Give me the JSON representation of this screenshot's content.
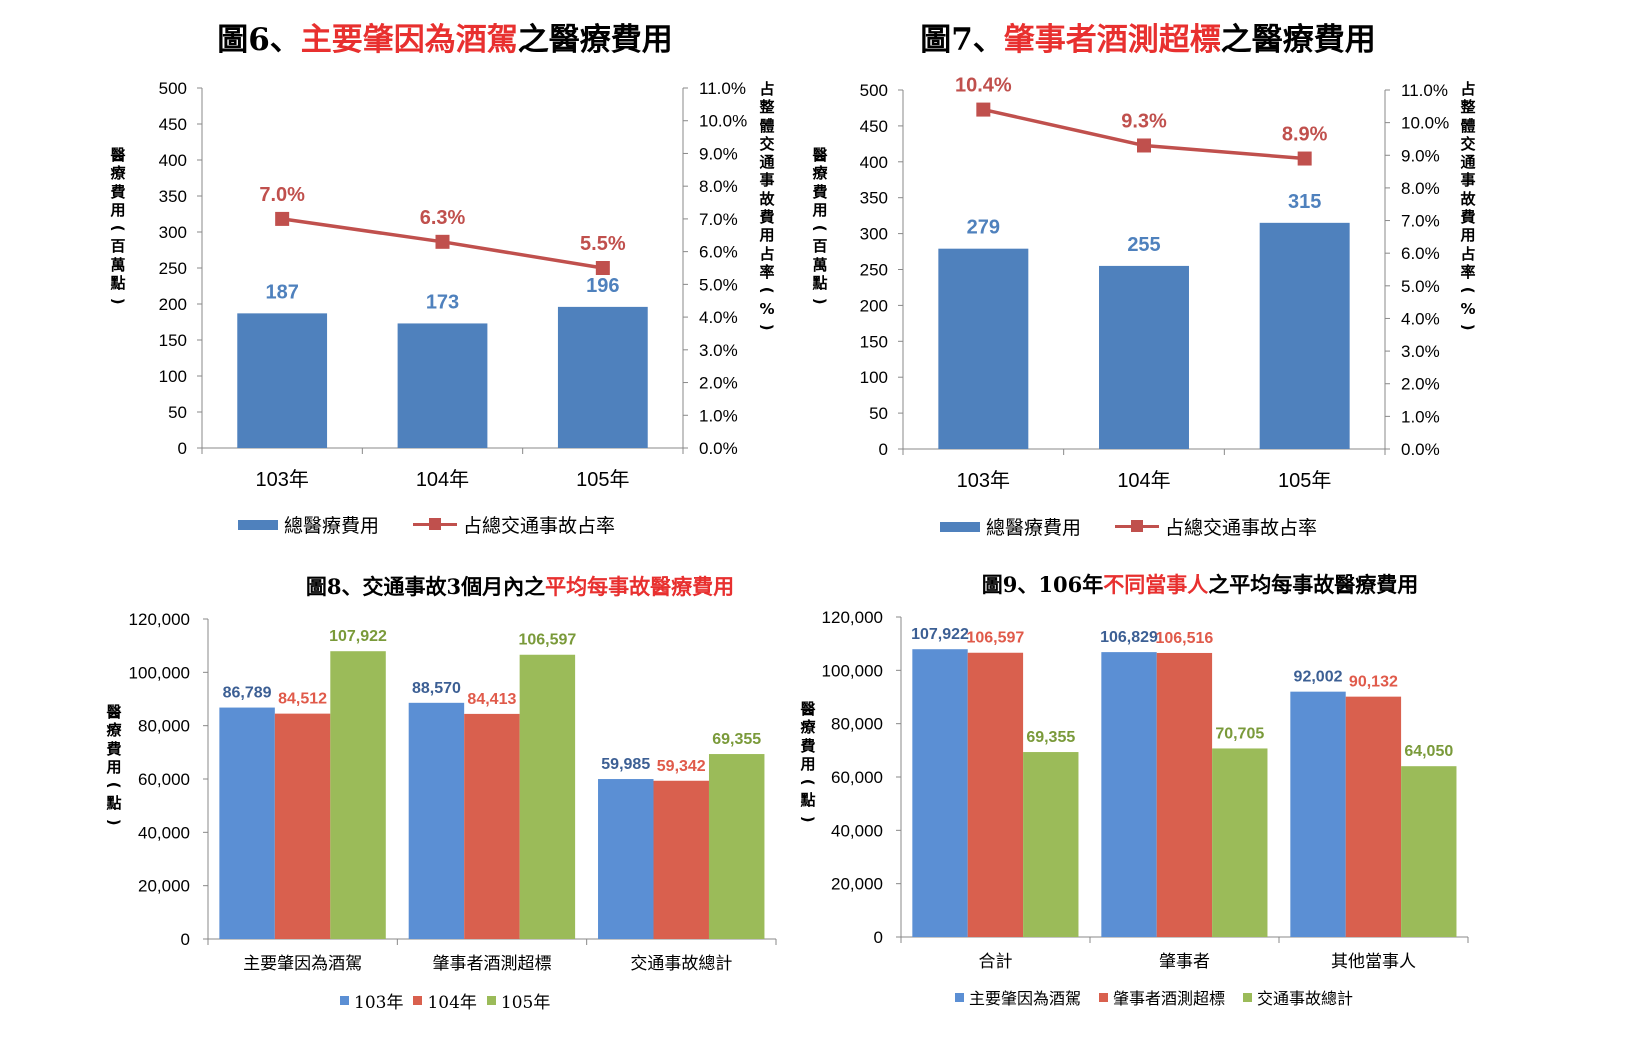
{
  "charts": [
    {
      "title_parts": [
        {
          "text": "圖6、",
          "hl": false
        },
        {
          "text": "主要肇因為酒駕",
          "hl": true
        },
        {
          "text": "之醫療費用",
          "hl": false
        }
      ],
      "y_label": "醫療費用(百萬點)",
      "y2_label": "占整體交通事故費用占率(%)",
      "legend": [
        "總醫療費用",
        "占總交通事故占率"
      ]
    },
    {
      "title_parts": [
        {
          "text": "圖7、",
          "hl": false
        },
        {
          "text": "肇事者酒測超標",
          "hl": true
        },
        {
          "text": "之醫療費用",
          "hl": false
        }
      ],
      "y_label": "醫療費用(百萬點)",
      "y2_label": "占整體交通事故費用占率(%)",
      "legend": [
        "總醫療費用",
        "占總交通事故占率"
      ]
    },
    {
      "title_parts": [
        {
          "text": "圖8、交通事故3個月內之",
          "hl": false
        },
        {
          "text": "平均每事故醫療費用",
          "hl": true
        }
      ],
      "y_label": "醫療費用(點)",
      "legend": [
        "103年",
        "104年",
        "105年"
      ]
    },
    {
      "title_parts": [
        {
          "text": "圖9、106年",
          "hl": false
        },
        {
          "text": "不同當事人",
          "hl": true
        },
        {
          "text": "之平均每事故醫療費用",
          "hl": false
        }
      ],
      "y_label": "醫療費用(點)",
      "legend": [
        "主要肇因為酒駕",
        "肇事者酒測超標",
        "交通事故總計"
      ]
    }
  ],
  "colors": {
    "blue": "#4f81bd",
    "bar_blue_light": "#5b8fd4",
    "red": "#c0504d",
    "red_bar": "#d9604e",
    "green": "#9bbb59",
    "title_red": "#e8302f"
  },
  "chart_data": [
    {
      "type": "bar+line",
      "categories": [
        "103年",
        "104年",
        "105年"
      ],
      "bars": {
        "name": "總醫療費用",
        "values": [
          187,
          173,
          196
        ]
      },
      "line": {
        "name": "占總交通事故占率",
        "values": [
          7.0,
          6.3,
          5.5
        ],
        "labels": [
          "7.0%",
          "6.3%",
          "5.5%"
        ]
      },
      "ylim": [
        0,
        500
      ],
      "yticks": [
        0,
        50,
        100,
        150,
        200,
        250,
        300,
        350,
        400,
        450,
        500
      ],
      "y2lim": [
        0,
        11
      ],
      "y2ticks": [
        "0.0%",
        "1.0%",
        "2.0%",
        "3.0%",
        "4.0%",
        "5.0%",
        "6.0%",
        "7.0%",
        "8.0%",
        "9.0%",
        "10.0%",
        "11.0%"
      ],
      "legend_position": "bottom"
    },
    {
      "type": "bar+line",
      "categories": [
        "103年",
        "104年",
        "105年"
      ],
      "bars": {
        "name": "總醫療費用",
        "values": [
          279,
          255,
          315
        ]
      },
      "line": {
        "name": "占總交通事故占率",
        "values": [
          10.4,
          9.3,
          8.9
        ],
        "labels": [
          "10.4%",
          "9.3%",
          "8.9%"
        ]
      },
      "ylim": [
        0,
        500
      ],
      "yticks": [
        0,
        50,
        100,
        150,
        200,
        250,
        300,
        350,
        400,
        450,
        500
      ],
      "y2lim": [
        0,
        11
      ],
      "y2ticks": [
        "0.0%",
        "1.0%",
        "2.0%",
        "3.0%",
        "4.0%",
        "5.0%",
        "6.0%",
        "7.0%",
        "8.0%",
        "9.0%",
        "10.0%",
        "11.0%"
      ],
      "legend_position": "bottom"
    },
    {
      "type": "bar",
      "categories": [
        "主要肇因為酒駕",
        "肇事者酒測超標",
        "交通事故總計"
      ],
      "series": [
        {
          "name": "103年",
          "values": [
            86789,
            88570,
            59985
          ],
          "labels": [
            "86,789",
            "88,570",
            "59,985"
          ]
        },
        {
          "name": "104年",
          "values": [
            84512,
            84413,
            59342
          ],
          "labels": [
            "84,512",
            "84,413",
            "59,342"
          ]
        },
        {
          "name": "105年",
          "values": [
            107922,
            106597,
            69355
          ],
          "labels": [
            "107,922",
            "106,597",
            "69,355"
          ]
        }
      ],
      "ylim": [
        0,
        120000
      ],
      "yticks": [
        "0",
        "20,000",
        "40,000",
        "60,000",
        "80,000",
        "100,000",
        "120,000"
      ],
      "legend_position": "bottom"
    },
    {
      "type": "bar",
      "categories": [
        "合計",
        "肇事者",
        "其他當事人"
      ],
      "series": [
        {
          "name": "主要肇因為酒駕",
          "values": [
            107922,
            106829,
            92002
          ],
          "labels": [
            "107,922",
            "106,829",
            "92,002"
          ]
        },
        {
          "name": "肇事者酒測超標",
          "values": [
            106597,
            106516,
            90132
          ],
          "labels": [
            "106,597",
            "106,516",
            "90,132"
          ]
        },
        {
          "name": "交通事故總計",
          "values": [
            69355,
            70705,
            64050
          ],
          "labels": [
            "69,355",
            "70,705",
            "64,050"
          ]
        }
      ],
      "ylim": [
        0,
        120000
      ],
      "yticks": [
        "0",
        "20,000",
        "40,000",
        "60,000",
        "80,000",
        "100,000",
        "120,000"
      ],
      "legend_position": "bottom"
    }
  ]
}
